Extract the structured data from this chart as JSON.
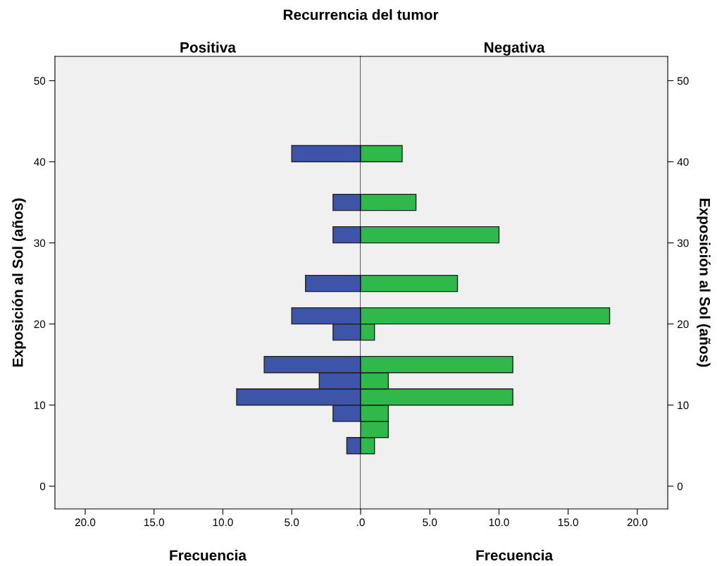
{
  "chart_data": [
    {
      "type": "bar",
      "orientation": "horizontal",
      "title": "Recurrencia del tumor",
      "subtitle": "Positiva",
      "xlabel": "Frecuencia",
      "ylabel": "Exposición al Sol (años)",
      "x": [
        5,
        9,
        11,
        13,
        15,
        19,
        21,
        25,
        31,
        35,
        41
      ],
      "values": [
        1,
        2,
        9,
        3,
        7,
        2,
        5,
        4,
        2,
        2,
        5
      ],
      "color": "#3e54a9",
      "xlim": [
        22.2,
        0
      ],
      "xticks": [
        {
          "value": 20,
          "label": "20.0"
        },
        {
          "value": 15,
          "label": "15.0"
        },
        {
          "value": 10,
          "label": "10.0"
        },
        {
          "value": 5,
          "label": "5.0"
        }
      ],
      "ylim": [
        -2.8,
        53
      ],
      "yticks": [
        0,
        10,
        20,
        30,
        40,
        50
      ],
      "grid": false
    },
    {
      "type": "bar",
      "orientation": "horizontal",
      "subtitle": "Negativa",
      "xlabel": "Frecuencia",
      "ylabel": "Exposición al Sol (años)",
      "x": [
        5,
        7,
        9,
        11,
        13,
        15,
        19,
        21,
        25,
        31,
        35,
        41
      ],
      "values": [
        1,
        2,
        2,
        11,
        2,
        11,
        1,
        18,
        7,
        10,
        4,
        3
      ],
      "color": "#2fb94a",
      "xlim": [
        0,
        22.2
      ],
      "xticks": [
        {
          "value": 0,
          "label": ".0"
        },
        {
          "value": 5,
          "label": "5.0"
        },
        {
          "value": 10,
          "label": "10.0"
        },
        {
          "value": 15,
          "label": "15.0"
        },
        {
          "value": 20,
          "label": "20.0"
        }
      ],
      "ylim": [
        -2.8,
        53
      ],
      "yticks": [
        0,
        10,
        20,
        30,
        40,
        50
      ],
      "grid": false
    }
  ]
}
